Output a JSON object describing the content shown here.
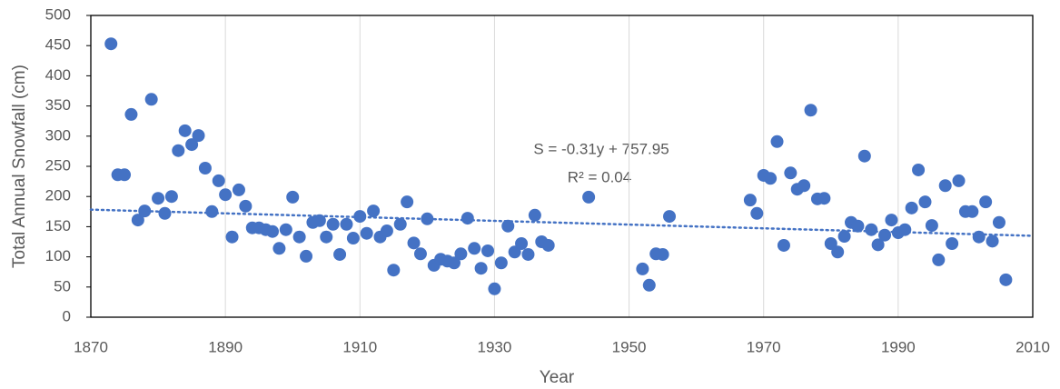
{
  "chart_data": {
    "type": "scatter",
    "x_label": "Year",
    "y_label": "Total Annual Snowfall (cm)",
    "annotations": [
      "S = -0.31y + 757.95",
      "R² = 0.04"
    ],
    "trendline": {
      "slope": -0.31,
      "intercept": 757.95
    },
    "color": "#4472c4",
    "x": [
      1873,
      1874,
      1875,
      1876,
      1877,
      1878,
      1879,
      1880,
      1881,
      1882,
      1883,
      1884,
      1885,
      1886,
      1887,
      1888,
      1889,
      1890,
      1891,
      1892,
      1893,
      1894,
      1895,
      1896,
      1897,
      1898,
      1899,
      1900,
      1901,
      1902,
      1903,
      1904,
      1905,
      1906,
      1907,
      1908,
      1909,
      1910,
      1911,
      1912,
      1913,
      1914,
      1915,
      1916,
      1917,
      1918,
      1919,
      1920,
      1921,
      1922,
      1923,
      1924,
      1925,
      1926,
      1927,
      1928,
      1929,
      1930,
      1931,
      1932,
      1933,
      1934,
      1935,
      1936,
      1937,
      1938,
      1944,
      1952,
      1953,
      1954,
      1955,
      1956,
      1968,
      1969,
      1970,
      1971,
      1972,
      1973,
      1974,
      1975,
      1976,
      1977,
      1978,
      1979,
      1980,
      1981,
      1982,
      1983,
      1984,
      1985,
      1986,
      1987,
      1988,
      1989,
      1990,
      1991,
      1992,
      1993,
      1994,
      1995,
      1996,
      1997,
      1998,
      1999,
      2000,
      2001,
      2002,
      2003,
      2004,
      2005,
      2006
    ],
    "values": [
      453,
      236,
      236,
      336,
      161,
      176,
      361,
      197,
      172,
      200,
      276,
      309,
      286,
      301,
      247,
      175,
      226,
      203,
      133,
      211,
      184,
      148,
      148,
      145,
      142,
      114,
      145,
      199,
      133,
      101,
      157,
      160,
      133,
      154,
      104,
      154,
      131,
      167,
      139,
      176,
      133,
      143,
      78,
      154,
      191,
      123,
      105,
      163,
      86,
      96,
      93,
      90,
      105,
      164,
      114,
      81,
      110,
      47,
      90,
      151,
      108,
      122,
      104,
      169,
      125,
      119,
      199,
      80,
      53,
      105,
      104,
      167,
      194,
      172,
      235,
      230,
      291,
      119,
      239,
      212,
      218,
      343,
      196,
      197,
      122,
      108,
      134,
      157,
      151,
      267,
      145,
      120,
      136,
      161,
      140,
      145,
      181,
      244,
      191,
      152,
      95,
      218,
      122,
      226,
      175,
      175,
      133,
      191,
      126,
      157,
      62
    ],
    "xlim": [
      1870,
      2010
    ],
    "xticks": [
      1870,
      1890,
      1910,
      1930,
      1950,
      1970,
      1990,
      2010
    ],
    "ylim": [
      0,
      500
    ],
    "yticks": [
      0,
      50,
      100,
      150,
      200,
      250,
      300,
      350,
      400,
      450,
      500
    ],
    "grid": true
  }
}
